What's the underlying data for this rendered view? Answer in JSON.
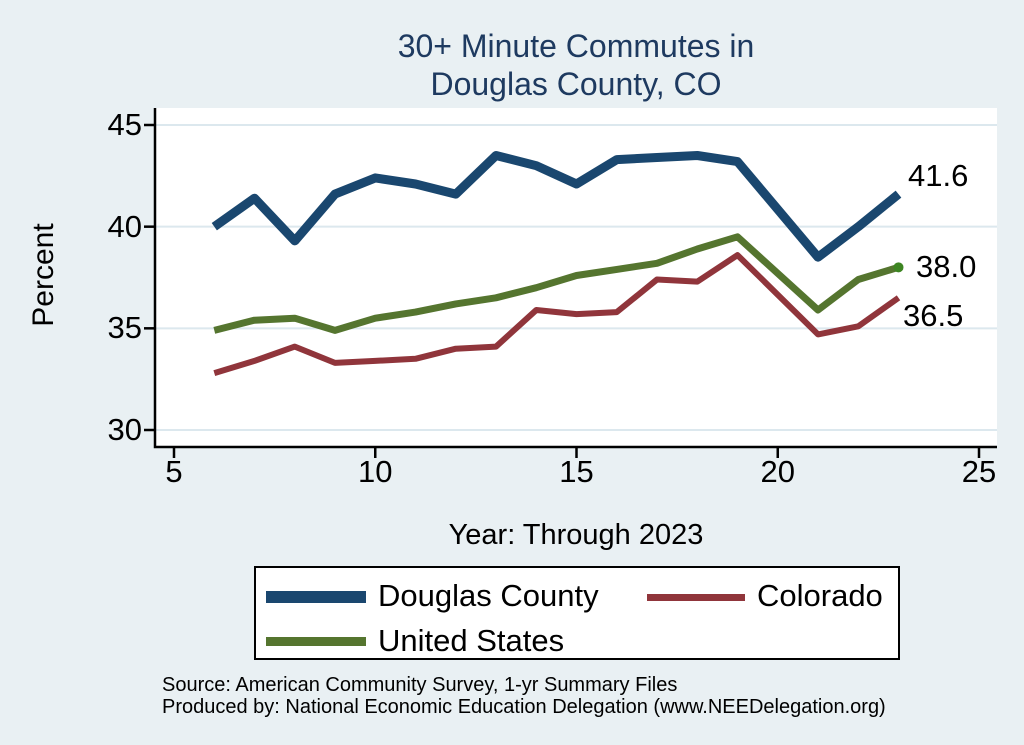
{
  "title": {
    "line1": "30+ Minute Commutes in",
    "line2": "Douglas County, CO"
  },
  "chart_data": {
    "type": "line",
    "title": "30+ Minute Commutes in Douglas County, CO",
    "xlabel": "Year: Through 2023",
    "ylabel": "Percent",
    "xlim": [
      5,
      25
    ],
    "ylim": [
      30,
      45
    ],
    "x_ticks": [
      5,
      10,
      15,
      20,
      25
    ],
    "y_ticks": [
      30,
      35,
      40,
      45
    ],
    "grid": "horizontal",
    "legend_position": "bottom",
    "x": [
      6,
      7,
      8,
      9,
      10,
      11,
      12,
      13,
      14,
      15,
      16,
      17,
      18,
      19,
      21,
      22,
      23
    ],
    "series": [
      {
        "name": "Douglas County",
        "color": "#1a476f",
        "values": [
          40.0,
          41.4,
          39.3,
          41.6,
          42.4,
          42.1,
          41.6,
          43.5,
          43.0,
          42.1,
          43.3,
          43.4,
          43.5,
          43.2,
          38.5,
          40.0,
          41.6
        ],
        "end_label": "41.6"
      },
      {
        "name": "Colorado",
        "color": "#90353b",
        "values": [
          32.8,
          33.4,
          34.1,
          33.3,
          33.4,
          33.5,
          34.0,
          34.1,
          35.9,
          35.7,
          35.8,
          37.4,
          37.3,
          38.6,
          34.7,
          35.1,
          36.5
        ],
        "end_label": "36.5"
      },
      {
        "name": "United States",
        "color": "#55752f",
        "values": [
          34.9,
          35.4,
          35.5,
          34.9,
          35.5,
          35.8,
          36.2,
          36.5,
          37.0,
          37.6,
          37.9,
          38.2,
          38.9,
          39.5,
          35.9,
          37.4,
          38.0
        ],
        "end_label": "38.0",
        "end_marker_color": "#3d8522"
      }
    ]
  },
  "axes": {
    "y_label": "Percent",
    "x_label": "Year: Through 2023"
  },
  "source": {
    "line1": "Source: American Community Survey, 1-yr Summary Files",
    "line2": "Produced by: National Economic Education Delegation (www.NEEDelegation.org)"
  },
  "colors": {
    "background": "#e9f0f3",
    "plot_background": "#ffffff",
    "gridline": "#dce8ee",
    "axis": "#000000",
    "title_text": "#1e3a60"
  }
}
